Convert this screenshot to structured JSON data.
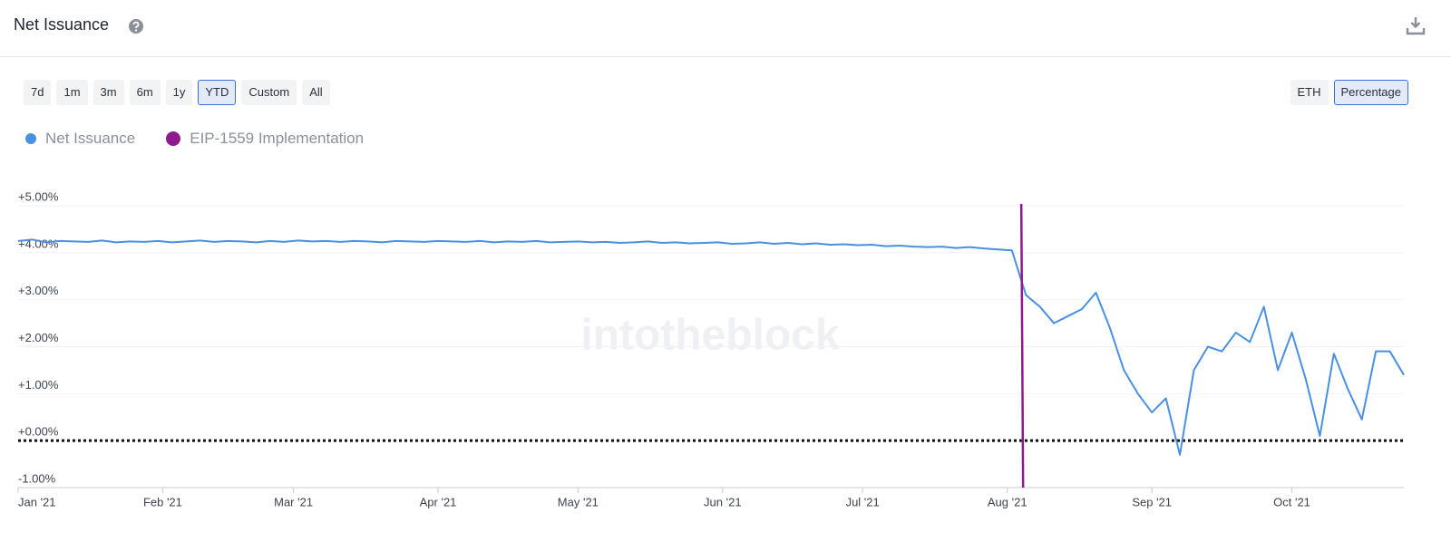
{
  "header": {
    "title": "Net Issuance"
  },
  "ranges": [
    "7d",
    "1m",
    "3m",
    "6m",
    "1y",
    "YTD",
    "Custom",
    "All"
  ],
  "selected_range": "YTD",
  "units": [
    "ETH",
    "Percentage"
  ],
  "selected_unit": "Percentage",
  "chart_data": {
    "type": "line",
    "watermark": "intotheblock",
    "series": [
      {
        "name": "Net Issuance",
        "color": "#4a90e2",
        "values": [
          4.25,
          4.28,
          4.22,
          4.25,
          4.24,
          4.23,
          4.26,
          4.22,
          4.24,
          4.23,
          4.25,
          4.22,
          4.24,
          4.26,
          4.23,
          4.25,
          4.24,
          4.22,
          4.25,
          4.23,
          4.26,
          4.24,
          4.25,
          4.23,
          4.25,
          4.24,
          4.22,
          4.25,
          4.24,
          4.23,
          4.25,
          4.24,
          4.23,
          4.25,
          4.22,
          4.24,
          4.23,
          4.25,
          4.22,
          4.23,
          4.24,
          4.22,
          4.23,
          4.21,
          4.22,
          4.24,
          4.21,
          4.22,
          4.2,
          4.21,
          4.22,
          4.19,
          4.2,
          4.22,
          4.19,
          4.21,
          4.18,
          4.2,
          4.17,
          4.18,
          4.16,
          4.17,
          4.14,
          4.15,
          4.13,
          4.12,
          4.13,
          4.1,
          4.12,
          4.09,
          4.07,
          4.05,
          3.1,
          2.85,
          2.5,
          2.65,
          2.8,
          3.15,
          2.4,
          1.5,
          1.0,
          0.6,
          0.9,
          -0.3,
          1.5,
          2.0,
          1.9,
          2.3,
          2.1,
          2.85,
          1.5,
          2.3,
          1.3,
          0.1,
          1.85,
          1.1,
          0.45,
          1.9,
          1.9,
          1.4
        ]
      }
    ],
    "annotations": [
      {
        "name": "EIP-1559 Implementation",
        "color": "#8e1a8e",
        "x": 71.67
      }
    ],
    "zero_line": true,
    "grid": true,
    "xlim": [
      0,
      99
    ],
    "xticks": [
      {
        "value": 0,
        "label": "Jan '21"
      },
      {
        "value": 10.33,
        "label": "Feb '21"
      },
      {
        "value": 19.67,
        "label": "Mar '21"
      },
      {
        "value": 30,
        "label": "Apr '21"
      },
      {
        "value": 40,
        "label": "May '21"
      },
      {
        "value": 50.33,
        "label": "Jun '21"
      },
      {
        "value": 60.33,
        "label": "Jul '21"
      },
      {
        "value": 70.67,
        "label": "Aug '21"
      },
      {
        "value": 81,
        "label": "Sep '21"
      },
      {
        "value": 91,
        "label": "Oct '21"
      }
    ],
    "ylim": [
      -1,
      5
    ],
    "yticks": [
      {
        "value": -1,
        "label": "-1.00%"
      },
      {
        "value": 0,
        "label": "+0.00%"
      },
      {
        "value": 1,
        "label": "+1.00%"
      },
      {
        "value": 2,
        "label": "+2.00%"
      },
      {
        "value": 3,
        "label": "+3.00%"
      },
      {
        "value": 4,
        "label": "+4.00%"
      },
      {
        "value": 5,
        "label": "+5.00%"
      }
    ]
  }
}
